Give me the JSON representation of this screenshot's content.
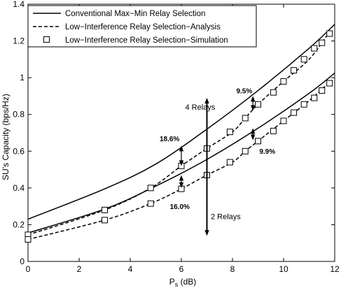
{
  "chart_data": {
    "type": "line",
    "xlabel": "P",
    "xlabel_sub": "s",
    "xlabel_unit": " (dB)",
    "ylabel": "SU's Capacity (bps/Hz)",
    "xlim": [
      0,
      12
    ],
    "ylim": [
      0,
      1.4
    ],
    "xticks": [
      "0",
      "2",
      "4",
      "6",
      "8",
      "10",
      "12"
    ],
    "yticks": [
      "0",
      "0.2",
      "0.4",
      "0.6",
      "0.8",
      "1",
      "1.2",
      "1.4"
    ],
    "grid": false,
    "legend_position": "top-left",
    "series": [
      {
        "name": "Conventional Max−Min Relay Selection",
        "style": "solid",
        "marker": "none",
        "curves": [
          {
            "group": "4 Relays",
            "x": [
              0,
              3,
              5,
              7,
              9,
              11,
              12
            ],
            "y": [
              0.23,
              0.395,
              0.53,
              0.72,
              0.93,
              1.16,
              1.29
            ]
          },
          {
            "group": "2 Relays",
            "x": [
              0,
              3,
              5,
              7,
              9,
              11,
              12
            ],
            "y": [
              0.155,
              0.285,
              0.41,
              0.555,
              0.725,
              0.915,
              1.025
            ]
          }
        ]
      },
      {
        "name": "Low−Interference Relay Selection−Analysis",
        "style": "dashed",
        "marker": "none",
        "curves": [
          {
            "group": "4 Relays",
            "x": [
              0,
              3,
              4.8,
              6,
              7,
              8,
              8.5,
              9,
              10,
              11,
              11.75
            ],
            "y": [
              0.145,
              0.28,
              0.4,
              0.52,
              0.615,
              0.705,
              0.78,
              0.855,
              0.98,
              1.1,
              1.24
            ]
          },
          {
            "group": "2 Relays",
            "x": [
              0,
              3,
              4.8,
              6,
              7,
              8,
              8.5,
              9,
              10,
              11,
              11.75
            ],
            "y": [
              0.12,
              0.225,
              0.315,
              0.395,
              0.47,
              0.54,
              0.6,
              0.655,
              0.765,
              0.875,
              0.97
            ]
          }
        ]
      },
      {
        "name": "Low−Interference Relay Selection−Simulation",
        "style": "none",
        "marker": "square",
        "curves": [
          {
            "group": "4 Relays",
            "x": [
              0,
              3,
              4.8,
              6,
              7,
              7.9,
              8.5,
              9,
              9.6,
              10,
              10.4,
              10.8,
              11.2,
              11.5,
              11.8
            ],
            "y": [
              0.145,
              0.28,
              0.4,
              0.52,
              0.615,
              0.705,
              0.78,
              0.855,
              0.92,
              0.98,
              1.04,
              1.1,
              1.16,
              1.19,
              1.24
            ]
          },
          {
            "group": "2 Relays",
            "x": [
              0,
              3,
              4.8,
              6,
              7,
              7.9,
              8.5,
              9,
              9.6,
              10,
              10.4,
              10.8,
              11.2,
              11.5,
              11.8
            ],
            "y": [
              0.12,
              0.225,
              0.315,
              0.395,
              0.47,
              0.54,
              0.6,
              0.655,
              0.71,
              0.765,
              0.81,
              0.855,
              0.89,
              0.93,
              0.97
            ]
          }
        ]
      }
    ],
    "annotations": [
      {
        "text": "4 Relays",
        "type": "label",
        "x": 6.15,
        "y": 0.825
      },
      {
        "text": "2 Relays",
        "type": "label",
        "x": 7.15,
        "y": 0.23
      },
      {
        "text": "18.6%",
        "type": "percent",
        "x": 5.15,
        "y": 0.655
      },
      {
        "text": "16.0%",
        "type": "percent",
        "x": 5.55,
        "y": 0.285
      },
      {
        "text": "9.5%",
        "type": "percent",
        "x": 8.15,
        "y": 0.915
      },
      {
        "text": "9.9%",
        "type": "percent",
        "x": 9.05,
        "y": 0.585
      }
    ],
    "arrows": [
      {
        "x": 6,
        "y1": 0.63,
        "y2": 0.52
      },
      {
        "x": 6,
        "y1": 0.47,
        "y2": 0.4
      },
      {
        "x": 8.8,
        "y1": 0.9,
        "y2": 0.82
      },
      {
        "x": 8.8,
        "y1": 0.725,
        "y2": 0.66
      },
      {
        "x": 7,
        "y1": 0.89,
        "y2": 0.14
      }
    ]
  }
}
